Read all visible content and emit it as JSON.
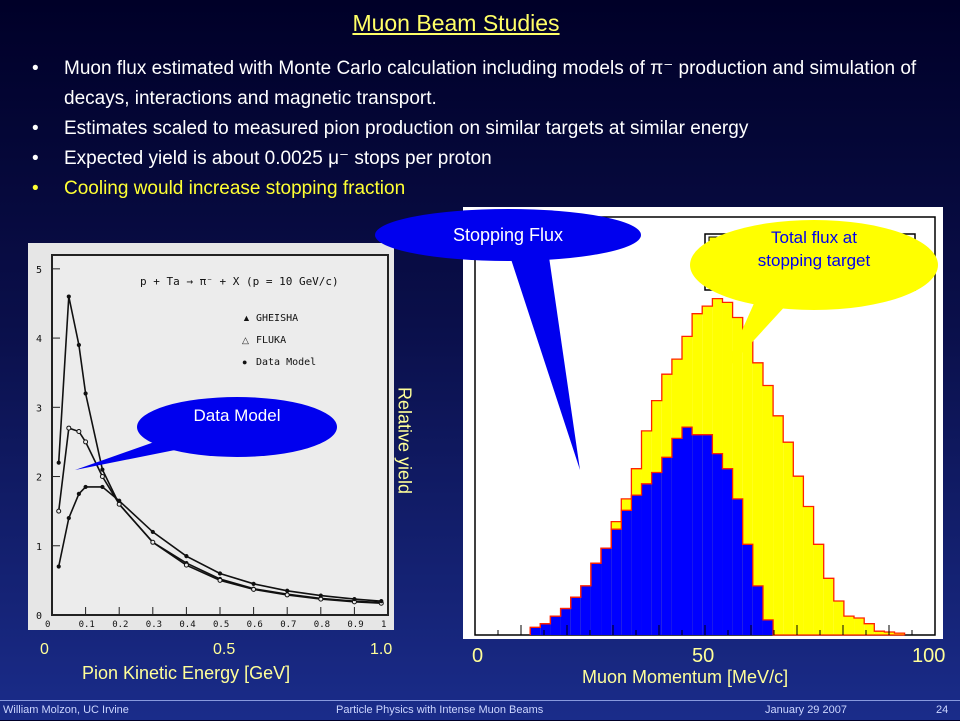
{
  "title": "Muon Beam Studies",
  "bullets": [
    {
      "text": "Muon flux estimated with Monte Carlo calculation including models of π⁻ production and simulation of decays, interactions and magnetic transport.",
      "color": "#ffffff"
    },
    {
      "text": "Estimates scaled to measured pion production on similar targets at similar energy",
      "color": "#ffffff"
    },
    {
      "text": "Expected yield is about 0.0025 μ⁻ stops per proton",
      "color": "#ffffff"
    },
    {
      "text": "Cooling would increase stopping fraction",
      "color": "#ffff33"
    }
  ],
  "left_plot": {
    "reaction": "p + Ta → π⁻ + X (p = 10 GeV/c)",
    "legend": [
      "GHEISHA",
      "FLUKA",
      "Data Model"
    ],
    "y_tick_labels": [
      "0",
      "1",
      "2",
      "3",
      "4",
      "5"
    ],
    "x_tick_labels": [
      "0",
      "0.1",
      "0.2",
      "0.3",
      "0.4",
      "0.5",
      "0.6",
      "0.7",
      "0.8",
      "0.9",
      "1"
    ],
    "outer_x_ticks": [
      "0",
      "0.5",
      "1.0"
    ],
    "xlabel": "Pion Kinetic Energy [GeV]",
    "ylabel": "Relative yield",
    "callout": "Data Model"
  },
  "right_plot": {
    "outer_x_ticks": [
      "0",
      "50",
      "100"
    ],
    "xlabel": "Muon Momentum [MeV/c]",
    "callout_stopping": "Stopping Flux",
    "callout_total": "Total flux at stopping target"
  },
  "colors": {
    "total": "#ffff00",
    "stopping": "#0000ff",
    "outline": "#ff2200",
    "callout": "#0000ee",
    "callout_yellow": "#ffff00"
  },
  "chart_data": [
    {
      "type": "line",
      "xlim": [
        0,
        1
      ],
      "ylim": [
        0,
        5.2
      ],
      "series": [
        {
          "name": "GHEISHA",
          "x": [
            0.02,
            0.05,
            0.08,
            0.1,
            0.15,
            0.2,
            0.3,
            0.4,
            0.5,
            0.6,
            0.7,
            0.8,
            0.9,
            0.98
          ],
          "values": [
            2.2,
            4.6,
            3.9,
            3.2,
            2.1,
            1.6,
            1.05,
            0.75,
            0.52,
            0.38,
            0.3,
            0.24,
            0.2,
            0.18
          ]
        },
        {
          "name": "FLUKA",
          "x": [
            0.02,
            0.05,
            0.08,
            0.1,
            0.15,
            0.2,
            0.3,
            0.4,
            0.5,
            0.6,
            0.7,
            0.8,
            0.9,
            0.98
          ],
          "values": [
            1.5,
            2.7,
            2.65,
            2.5,
            2.0,
            1.6,
            1.05,
            0.72,
            0.5,
            0.37,
            0.29,
            0.23,
            0.19,
            0.17
          ]
        },
        {
          "name": "Data Model",
          "x": [
            0.02,
            0.05,
            0.08,
            0.1,
            0.15,
            0.2,
            0.3,
            0.4,
            0.5,
            0.6,
            0.7,
            0.8,
            0.9,
            0.98
          ],
          "values": [
            0.7,
            1.4,
            1.75,
            1.85,
            1.85,
            1.65,
            1.2,
            0.85,
            0.6,
            0.45,
            0.35,
            0.28,
            0.23,
            0.2
          ]
        }
      ]
    },
    {
      "type": "bar",
      "bin_width": 2.2,
      "x_start": 12,
      "xlim": [
        0,
        100
      ],
      "series": [
        {
          "name": "Total flux at stopping target",
          "values": [
            0.02,
            0.03,
            0.05,
            0.07,
            0.1,
            0.13,
            0.19,
            0.23,
            0.3,
            0.36,
            0.44,
            0.54,
            0.62,
            0.69,
            0.73,
            0.79,
            0.85,
            0.87,
            0.89,
            0.88,
            0.84,
            0.79,
            0.72,
            0.66,
            0.58,
            0.51,
            0.42,
            0.34,
            0.24,
            0.15,
            0.09,
            0.05,
            0.045,
            0.03,
            0.01,
            0.008,
            0.005
          ]
        },
        {
          "name": "Stopping Flux",
          "values": [
            0.02,
            0.03,
            0.05,
            0.07,
            0.1,
            0.13,
            0.19,
            0.23,
            0.28,
            0.33,
            0.37,
            0.4,
            0.43,
            0.47,
            0.52,
            0.55,
            0.53,
            0.53,
            0.48,
            0.44,
            0.36,
            0.24,
            0.13,
            0.04,
            0,
            0,
            0,
            0,
            0,
            0,
            0,
            0,
            0,
            0,
            0,
            0,
            0
          ]
        }
      ]
    }
  ]
}
